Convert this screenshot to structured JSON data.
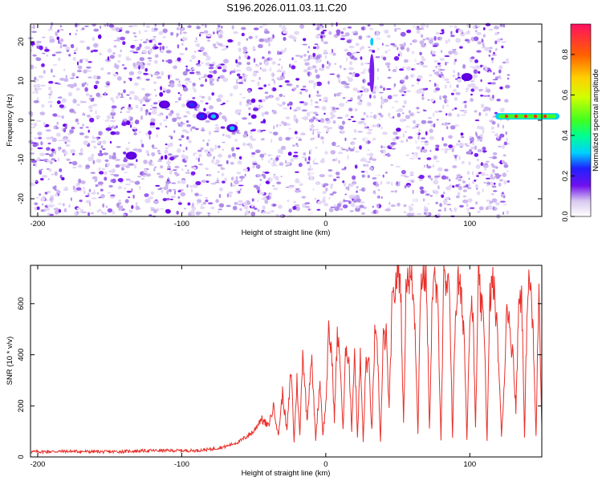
{
  "title": "S196.2026.011.03.11.C20",
  "chart_data": [
    {
      "type": "heatmap",
      "xlabel": "Height of straight line (km)",
      "ylabel": "Frequency (Hz)",
      "xlim": [
        -205,
        150
      ],
      "ylim": [
        -24.5,
        24.5
      ],
      "xticks": [
        -200,
        -100,
        0,
        100
      ],
      "yticks": [
        -20,
        -10,
        0,
        10,
        20
      ],
      "colorbar": {
        "label": "Normalized spectral amplitude",
        "range": [
          0.0,
          0.95
        ],
        "ticks": [
          0.0,
          0.2,
          0.4,
          0.6,
          0.8
        ],
        "tick_labels": [
          "0.0",
          "0.2",
          "0.4",
          "0.6",
          "0.8"
        ],
        "colormap": [
          "#ffffff",
          "#d8c8f0",
          "#a070e6",
          "#7010ee",
          "#2020ff",
          "#00d0ff",
          "#00ff90",
          "#40ff20",
          "#d0ff00",
          "#ffd000",
          "#ff6000",
          "#ff1040"
        ]
      },
      "features": [
        {
          "x": -112,
          "y": 4,
          "amp": 0.12
        },
        {
          "x": -93,
          "y": 4,
          "amp": 0.15
        },
        {
          "x": -86,
          "y": 1,
          "amp": 0.2
        },
        {
          "x": -78,
          "y": 1,
          "amp": 0.22
        },
        {
          "x": -65,
          "y": -2,
          "amp": 0.25
        },
        {
          "x": -135,
          "y": -9,
          "amp": 0.12
        },
        {
          "x": 32,
          "y": 20,
          "amp": 0.28
        },
        {
          "x": 98,
          "y": 11,
          "amp": 0.1
        },
        {
          "x": 140,
          "y": 1,
          "amp": 0.8
        }
      ],
      "data_end_x": 127
    },
    {
      "type": "line",
      "xlabel": "Height of straight line (km)",
      "ylabel": "SNR (10 * v/v)",
      "xlim": [
        -205,
        150
      ],
      "ylim": [
        0,
        750
      ],
      "xticks": [
        -200,
        -100,
        0,
        100
      ],
      "yticks": [
        0,
        200,
        400,
        600
      ],
      "color": "#e8302a",
      "x": [
        -205,
        -180,
        -150,
        -120,
        -90,
        -80,
        -70,
        -60,
        -50,
        -45,
        -40,
        -36,
        -33,
        -30,
        -27,
        -24,
        -22,
        -20,
        -18,
        -16,
        -13,
        -10,
        -7,
        -4,
        -2,
        0,
        2,
        4,
        6,
        8,
        10,
        12,
        14,
        16,
        18,
        20,
        22,
        24,
        26,
        28,
        30,
        32,
        34,
        36,
        38,
        40,
        42,
        44,
        46,
        48,
        50,
        52,
        54,
        56,
        58,
        60,
        62,
        64,
        66,
        68,
        70,
        72,
        74,
        76,
        78,
        80,
        82,
        84,
        86,
        88,
        90,
        92,
        94,
        96,
        98,
        100,
        102,
        104,
        106,
        108,
        110,
        112,
        114,
        116,
        118,
        120,
        122,
        124,
        126,
        128,
        130,
        132,
        134,
        136,
        138,
        140,
        142,
        144,
        146,
        148,
        150
      ],
      "y": [
        20,
        22,
        20,
        25,
        25,
        30,
        40,
        60,
        100,
        150,
        120,
        200,
        80,
        250,
        100,
        350,
        60,
        300,
        80,
        420,
        140,
        400,
        70,
        300,
        90,
        200,
        480,
        420,
        150,
        470,
        380,
        100,
        440,
        390,
        110,
        420,
        80,
        390,
        60,
        380,
        350,
        100,
        470,
        400,
        60,
        460,
        470,
        180,
        580,
        650,
        740,
        680,
        120,
        730,
        700,
        690,
        520,
        100,
        700,
        720,
        680,
        100,
        650,
        690,
        560,
        70,
        700,
        640,
        660,
        80,
        560,
        690,
        620,
        500,
        70,
        570,
        600,
        110,
        700,
        580,
        520,
        60,
        620,
        690,
        580,
        380,
        80,
        300,
        640,
        460,
        420,
        180,
        600,
        660,
        70,
        640,
        690,
        470,
        80,
        690,
        120
      ]
    }
  ]
}
